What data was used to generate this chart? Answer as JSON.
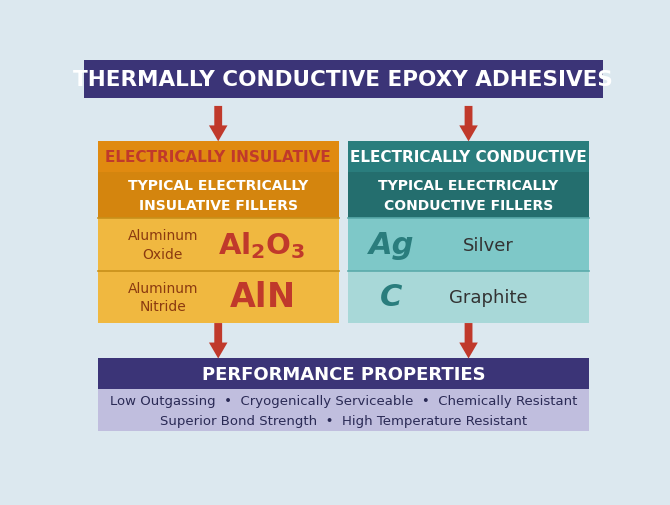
{
  "title": "THERMALLY CONDUCTIVE EPOXY ADHESIVES",
  "title_bg": "#3b3477",
  "title_color": "#ffffff",
  "bg_color": "#dce8ef",
  "left_header_text": "ELECTRICALLY INSULATIVE",
  "left_header_bg": "#e08a10",
  "left_header_color": "#c0392b",
  "left_sub_header_text": "TYPICAL ELECTRICALLY\nINSULATIVE FILLERS",
  "left_sub_bg": "#d4850e",
  "left_sub_color": "#ffffff",
  "left_row1_label": "Aluminum\nOxide",
  "left_row1_bg": "#f0b840",
  "left_row2_label": "Aluminum\nNitride",
  "left_row2_bg": "#f0b840",
  "left_symbol_color": "#c0392b",
  "left_label_color": "#8b3a10",
  "right_header_text": "ELECTRICALLY CONDUCTIVE",
  "right_header_bg": "#2a7d7d",
  "right_header_color": "#ffffff",
  "right_sub_header_text": "TYPICAL ELECTRICALLY\nCONDUCTIVE FILLERS",
  "right_sub_bg": "#246e6e",
  "right_sub_color": "#ffffff",
  "right_row1_label": "Ag",
  "right_row1_text": "Silver",
  "right_row1_bg": "#7ec8c8",
  "right_row2_label": "C",
  "right_row2_text": "Graphite",
  "right_row2_bg": "#a8d8d8",
  "right_symbol_color": "#2a7d7d",
  "right_text_color": "#333333",
  "bottom_header_text": "PERFORMANCE PROPERTIES",
  "bottom_header_bg": "#3b3477",
  "bottom_header_color": "#ffffff",
  "bottom_sub_text": "Low Outgassing  •  Cryogenically Serviceable  •  Chemically Resistant\nSuperior Bond Strength  •  High Temperature Resistant",
  "bottom_sub_bg": "#c0bede",
  "bottom_sub_color": "#2a2a55",
  "arrow_color": "#c0392b",
  "sep_color_left": "#c8901a",
  "sep_color_right": "#5aabab"
}
